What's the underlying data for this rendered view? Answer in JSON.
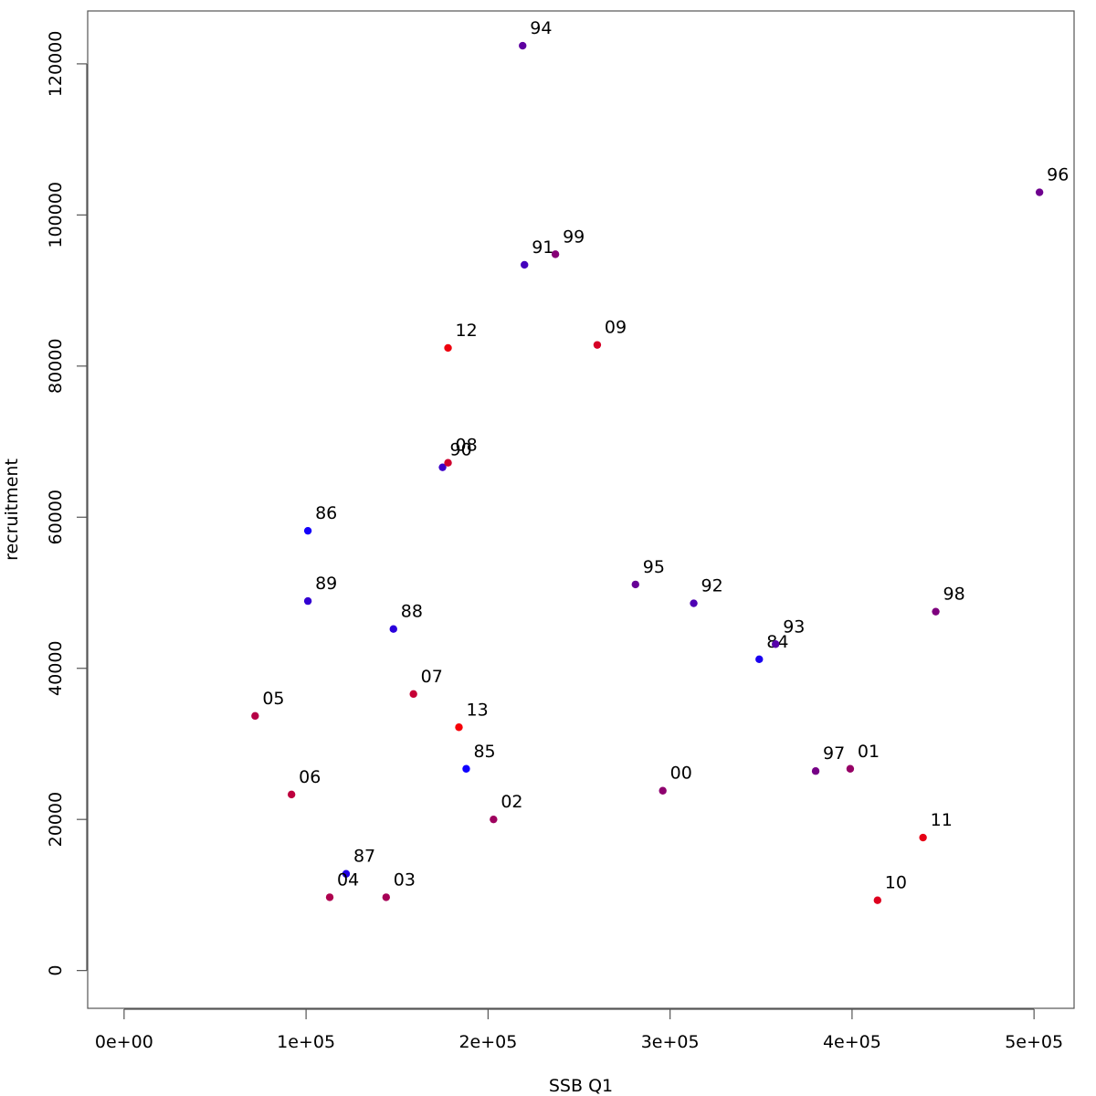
{
  "chart_data": {
    "type": "scatter",
    "title": "",
    "xlabel": "SSB Q1",
    "ylabel": "recruitment",
    "xlim": [
      -20000,
      522000
    ],
    "ylim": [
      -5000,
      127000
    ],
    "grid": false,
    "legend": "none",
    "x_ticks": [
      {
        "value": 0,
        "label": "0e+00"
      },
      {
        "value": 100000,
        "label": "1e+05"
      },
      {
        "value": 200000,
        "label": "2e+05"
      },
      {
        "value": 300000,
        "label": "3e+05"
      },
      {
        "value": 400000,
        "label": "4e+05"
      },
      {
        "value": 500000,
        "label": "5e+05"
      }
    ],
    "y_ticks": [
      {
        "value": 0,
        "label": "0"
      },
      {
        "value": 20000,
        "label": "20000"
      },
      {
        "value": 40000,
        "label": "40000"
      },
      {
        "value": 60000,
        "label": "60000"
      },
      {
        "value": 80000,
        "label": "80000"
      },
      {
        "value": 100000,
        "label": "100000"
      },
      {
        "value": 120000,
        "label": "120000"
      }
    ],
    "points": [
      {
        "label": "84",
        "x": 349000,
        "y": 41200,
        "color": "#1a00f0"
      },
      {
        "label": "85",
        "x": 188000,
        "y": 26700,
        "color": "#0f00ff"
      },
      {
        "label": "86",
        "x": 101000,
        "y": 58200,
        "color": "#1400fa"
      },
      {
        "label": "87",
        "x": 122000,
        "y": 12800,
        "color": "#2200e6"
      },
      {
        "label": "88",
        "x": 148000,
        "y": 45200,
        "color": "#2a00dc"
      },
      {
        "label": "89",
        "x": 101000,
        "y": 48900,
        "color": "#3200d2"
      },
      {
        "label": "90",
        "x": 175000,
        "y": 66600,
        "color": "#3c00c8"
      },
      {
        "label": "91",
        "x": 220000,
        "y": 93400,
        "color": "#4400bc"
      },
      {
        "label": "92",
        "x": 313000,
        "y": 48600,
        "color": "#4e00b4"
      },
      {
        "label": "93",
        "x": 358000,
        "y": 43200,
        "color": "#5600aa"
      },
      {
        "label": "94",
        "x": 219000,
        "y": 122400,
        "color": "#5e00a0"
      },
      {
        "label": "95",
        "x": 281000,
        "y": 51100,
        "color": "#660096"
      },
      {
        "label": "96",
        "x": 503000,
        "y": 103000,
        "color": "#6e008e"
      },
      {
        "label": "97",
        "x": 380000,
        "y": 26400,
        "color": "#760086"
      },
      {
        "label": "98",
        "x": 446000,
        "y": 47500,
        "color": "#7e007e"
      },
      {
        "label": "99",
        "x": 237000,
        "y": 94800,
        "color": "#860076"
      },
      {
        "label": "00",
        "x": 296000,
        "y": 23800,
        "color": "#8e006e"
      },
      {
        "label": "01",
        "x": 399000,
        "y": 26700,
        "color": "#960066"
      },
      {
        "label": "02",
        "x": 203000,
        "y": 20000,
        "color": "#9e005e"
      },
      {
        "label": "03",
        "x": 144000,
        "y": 9700,
        "color": "#a60056"
      },
      {
        "label": "04",
        "x": 113000,
        "y": 9700,
        "color": "#ae004e"
      },
      {
        "label": "05",
        "x": 72000,
        "y": 33700,
        "color": "#b60046"
      },
      {
        "label": "06",
        "x": 92000,
        "y": 23300,
        "color": "#be003e"
      },
      {
        "label": "07",
        "x": 159000,
        "y": 36600,
        "color": "#c60036"
      },
      {
        "label": "08",
        "x": 178000,
        "y": 67200,
        "color": "#ce002e"
      },
      {
        "label": "09",
        "x": 260000,
        "y": 82800,
        "color": "#d60026"
      },
      {
        "label": "10",
        "x": 414000,
        "y": 9300,
        "color": "#de001e"
      },
      {
        "label": "11",
        "x": 439000,
        "y": 17600,
        "color": "#e60016"
      },
      {
        "label": "12",
        "x": 178000,
        "y": 82400,
        "color": "#ee000e"
      },
      {
        "label": "13",
        "x": 184000,
        "y": 32200,
        "color": "#f60008"
      }
    ]
  }
}
